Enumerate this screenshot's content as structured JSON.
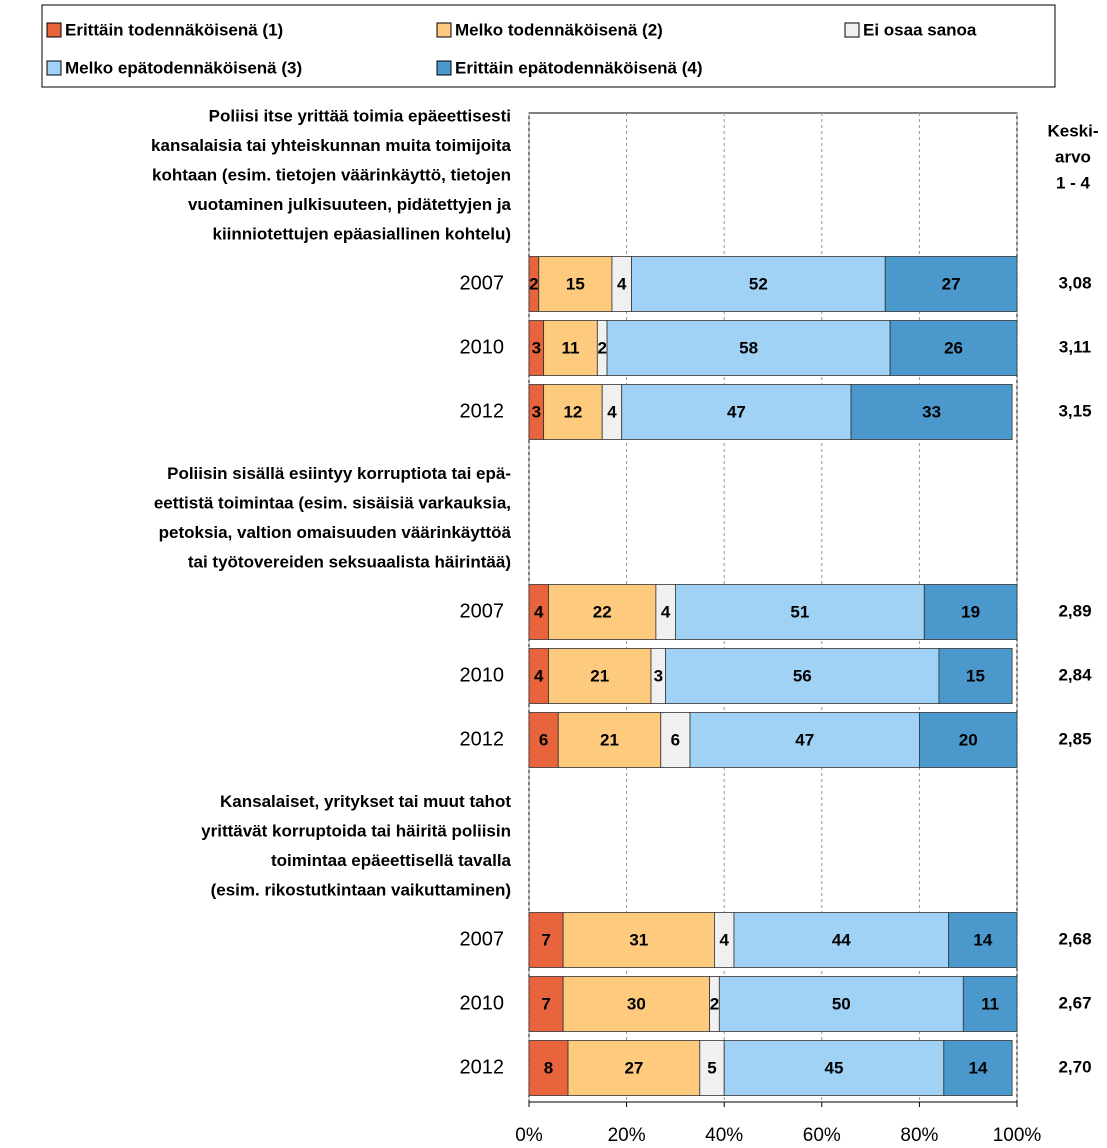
{
  "chart_data": {
    "type": "stacked-bar-horizontal",
    "legend": "top",
    "grid": true,
    "groups": [
      {
        "lines": [
          "Poliisi itse yrittää toimia epäeettisesti",
          "kansalaisia tai yhteiskunnan muita toimijoita",
          "kohtaan (esim. tietojen väärinkäyttö, tietojen",
          "vuotaminen julkisuuteen, pidätettyjen ja",
          "kiinniotettujen epäasiallinen kohtelu)"
        ]
      },
      {
        "lines": [
          "Poliisin sisällä esiintyy korruptiota tai epä-",
          "eettistä toimintaa (esim. sisäisiä varkauksia,",
          "petoksia, valtion omaisuuden väärinkäyttöä",
          "tai työtovereiden seksuaalista häirintää)"
        ]
      },
      {
        "lines": [
          "Kansalaiset, yritykset tai muut tahot",
          "yrittävät korruptoida tai häiritä poliisin",
          "toimintaa epäeettisellä tavalla",
          "(esim. rikostutkintaan vaikuttaminen)"
        ]
      }
    ],
    "categories": [
      "2007",
      "2010",
      "2012",
      "2007",
      "2010",
      "2012",
      "2007",
      "2010",
      "2012"
    ],
    "series": [
      {
        "name": "Erittäin todennäköisenä (1)",
        "color": "#e8643c",
        "values": [
          2,
          3,
          3,
          4,
          4,
          6,
          7,
          7,
          8
        ]
      },
      {
        "name": "Melko todennäköisenä (2)",
        "color": "#fdca7e",
        "values": [
          15,
          11,
          12,
          22,
          21,
          21,
          31,
          30,
          27
        ]
      },
      {
        "name": "Ei osaa sanoa",
        "color": "#f0f0f0",
        "values": [
          4,
          2,
          4,
          4,
          3,
          6,
          4,
          2,
          5
        ]
      },
      {
        "name": "Melko epätodennäköisenä (3)",
        "color": "#a0d2f6",
        "values": [
          52,
          58,
          47,
          51,
          56,
          47,
          44,
          50,
          45
        ]
      },
      {
        "name": "Erittäin epätodennäköisenä (4)",
        "color": "#4b99cc",
        "values": [
          27,
          26,
          33,
          19,
          15,
          20,
          14,
          11,
          14
        ]
      }
    ],
    "mean": {
      "title": [
        "Keski-",
        "arvo",
        "1 - 4"
      ],
      "values": [
        3.08,
        3.11,
        3.15,
        2.89,
        2.84,
        2.85,
        2.68,
        2.67,
        2.7
      ],
      "value_labels": [
        "3,08",
        "3,11",
        "3,15",
        "2,89",
        "2,84",
        "2,85",
        "2,68",
        "2,67",
        "2,70"
      ]
    },
    "xlim": [
      0,
      100
    ],
    "xticks": [
      {
        "value": 0,
        "label": "0%"
      },
      {
        "value": 20,
        "label": "20%"
      },
      {
        "value": 40,
        "label": "40%"
      },
      {
        "value": 60,
        "label": "60%"
      },
      {
        "value": 80,
        "label": "80%"
      },
      {
        "value": 100,
        "label": "100%"
      }
    ]
  }
}
